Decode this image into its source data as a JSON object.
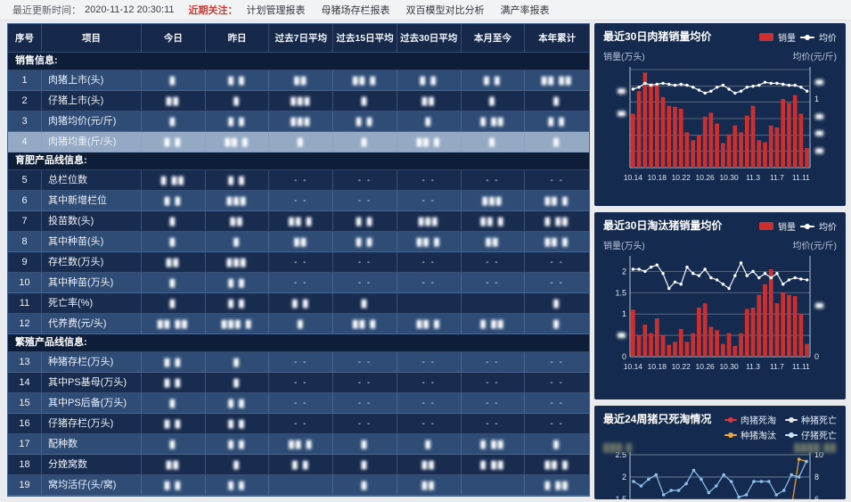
{
  "topbar": {
    "update_label": "最近更新时间：",
    "update_time": "2020-11-12 20:30:11",
    "focus_label": "近期关注：",
    "links": [
      "计划管理报表",
      "母猪场存栏报表",
      "双百模型对比分析",
      "满产率报表"
    ]
  },
  "table": {
    "headers": [
      "序号",
      "项目",
      "今日",
      "昨日",
      "过去7日平均",
      "过去15日平均",
      "过去30日平均",
      "本月至今",
      "本年累计"
    ],
    "sections": [
      {
        "title": "销售信息:",
        "rows": [
          {
            "num": "1",
            "label": "肉猪上市(头)",
            "shade": "a",
            "cells": [
              "█",
              "█ █",
              "██",
              "██ █",
              "█ █",
              "█ █",
              "██ ██"
            ]
          },
          {
            "num": "2",
            "label": "仔猪上市(头)",
            "shade": "b",
            "cells": [
              "██",
              "█",
              "███",
              "█",
              "██",
              "█",
              "█"
            ]
          },
          {
            "num": "3",
            "label": "肉猪均价(元/斤)",
            "shade": "a",
            "cells": [
              "█",
              "█ █",
              "███",
              "█ █",
              "█",
              "█ ██",
              "█ █"
            ]
          },
          {
            "num": "4",
            "label": "肉猪均重(斤/头)",
            "shade": "hl",
            "cells": [
              "█ █",
              "██ █",
              "█",
              "█",
              "██ █",
              "█",
              "█"
            ]
          }
        ]
      },
      {
        "title": "育肥产品线信息:",
        "rows": [
          {
            "num": "5",
            "label": "总栏位数",
            "shade": "b",
            "cells": [
              "█ ██",
              "█ █",
              "- -",
              "- -",
              "- -",
              "- -",
              "- -"
            ]
          },
          {
            "num": "6",
            "label": "其中新增栏位",
            "shade": "a",
            "cells": [
              "█ █",
              "███",
              "- -",
              "- -",
              "- -",
              "███",
              "██ █"
            ]
          },
          {
            "num": "7",
            "label": "投苗数(头)",
            "shade": "b",
            "cells": [
              "█",
              "██",
              "██ █",
              "█ █",
              "███",
              "██ █",
              "█ ██"
            ]
          },
          {
            "num": "8",
            "label": "其中种苗(头)",
            "shade": "a",
            "cells": [
              "█",
              "█",
              "██",
              "█ █",
              "██ █",
              "██",
              "██ █"
            ]
          },
          {
            "num": "9",
            "label": "存栏数(万头)",
            "shade": "b",
            "cells": [
              "██",
              "███",
              "- -",
              "- -",
              "- -",
              "- -",
              "- -"
            ]
          },
          {
            "num": "10",
            "label": "其中种苗(万头)",
            "shade": "a",
            "cells": [
              "█",
              "█ █",
              "- -",
              "- -",
              "- -",
              "- -",
              "- -"
            ]
          },
          {
            "num": "11",
            "label": "死亡率(%)",
            "shade": "b",
            "cells": [
              "█",
              "█ █",
              "█ █",
              "█",
              "",
              "",
              "█"
            ]
          },
          {
            "num": "12",
            "label": "代养费(元/头)",
            "shade": "a",
            "cells": [
              "██ ██",
              "███ █",
              "█",
              "██ █",
              "██ █",
              "█ ██",
              "█"
            ]
          }
        ]
      },
      {
        "title": "繁殖产品线信息:",
        "rows": [
          {
            "num": "13",
            "label": "种猪存栏(万头)",
            "shade": "a",
            "cells": [
              "█ █",
              "█",
              "- -",
              "- -",
              "- -",
              "- -",
              "- -"
            ]
          },
          {
            "num": "14",
            "label": "其中PS基母(万头)",
            "shade": "b",
            "cells": [
              "█ █",
              "█",
              "- -",
              "- -",
              "- -",
              "- -",
              "- -"
            ]
          },
          {
            "num": "15",
            "label": "其中PS后备(万头)",
            "shade": "a",
            "cells": [
              "█",
              "█ █",
              "- -",
              "- -",
              "- -",
              "- -",
              "- -"
            ]
          },
          {
            "num": "16",
            "label": "仔猪存栏(万头)",
            "shade": "b",
            "cells": [
              "█ █",
              "█ █",
              "- -",
              "- -",
              "- -",
              "- -",
              "- -"
            ]
          },
          {
            "num": "17",
            "label": "配种数",
            "shade": "a",
            "cells": [
              "█",
              "█ █",
              "██ █",
              "█",
              "█",
              "█ ██",
              "█"
            ]
          },
          {
            "num": "18",
            "label": "分娩窝数",
            "shade": "b",
            "cells": [
              "██",
              "█",
              "█ █",
              "█",
              "██",
              "█ ██",
              "██ █"
            ]
          },
          {
            "num": "19",
            "label": "窝均活仔(头/窝)",
            "shade": "a",
            "cells": [
              "█ █",
              "█ █",
              "",
              "█",
              "██",
              "",
              "█ ██"
            ]
          }
        ]
      }
    ]
  },
  "chart_data": {
    "c1": {
      "type": "bar",
      "title": "最近30日肉猪销量均价",
      "legend": [
        "销量",
        "均价"
      ],
      "y_left_label": "销量(万头)",
      "y_right_label": "均价(元/斤)",
      "bar_color": "#cb2f2f",
      "line_color": "#f2f5fa",
      "x_tick_labels": [
        "10.14",
        "10.18",
        "10.22",
        "10.26",
        "10.30",
        "11.3",
        "11.7",
        "11.11"
      ],
      "x_tick_index": [
        0,
        4,
        8,
        12,
        16,
        20,
        24,
        28
      ],
      "bars_rel": [
        0.55,
        0.78,
        0.97,
        0.86,
        0.84,
        0.72,
        0.63,
        0.62,
        0.6,
        0.36,
        0.28,
        0.33,
        0.52,
        0.56,
        0.45,
        0.25,
        0.34,
        0.43,
        0.36,
        0.53,
        0.63,
        0.28,
        0.26,
        0.43,
        0.41,
        0.7,
        0.66,
        0.74,
        0.55,
        0.2
      ],
      "line_rel": [
        0.8,
        0.82,
        0.86,
        0.84,
        0.85,
        0.86,
        0.85,
        0.84,
        0.85,
        0.84,
        0.82,
        0.79,
        0.76,
        0.78,
        0.82,
        0.84,
        0.8,
        0.76,
        0.78,
        0.82,
        0.83,
        0.84,
        0.87,
        0.86,
        0.86,
        0.85,
        0.84,
        0.84,
        0.82,
        0.78
      ],
      "right_axis_visible_tick": "1"
    },
    "c2": {
      "type": "bar",
      "title": "最近30日淘汰猪销量均价",
      "legend": [
        "销量",
        "均价"
      ],
      "y_left_label": "销量(万头)",
      "y_right_label": "均价(元/斤)",
      "bar_color": "#cb2f2f",
      "line_color": "#f2f5fa",
      "ylim": [
        0,
        2.3
      ],
      "y_ticks_left": [
        "0",
        "0.5",
        "1",
        "1.5",
        "2"
      ],
      "y_tick_right_visible": "0",
      "x_tick_labels": [
        "10.14",
        "10.18",
        "10.22",
        "10.26",
        "10.30",
        "11.3",
        "11.7",
        "11.11"
      ],
      "x_tick_index": [
        0,
        4,
        8,
        12,
        16,
        20,
        24,
        28
      ],
      "bars": [
        1.1,
        0.5,
        0.75,
        0.55,
        0.9,
        0.5,
        0.28,
        0.35,
        0.65,
        0.35,
        0.55,
        1.15,
        1.25,
        0.7,
        0.62,
        0.3,
        0.55,
        0.25,
        0.55,
        1.12,
        1.15,
        1.45,
        1.7,
        2.05,
        1.25,
        1.5,
        1.45,
        1.42,
        1.0,
        0.3
      ],
      "line": [
        2.05,
        2.05,
        2.0,
        2.1,
        2.15,
        1.95,
        1.6,
        1.75,
        1.7,
        2.1,
        1.95,
        1.9,
        2.05,
        1.85,
        1.8,
        1.7,
        1.6,
        1.9,
        2.2,
        1.9,
        2.0,
        1.85,
        1.95,
        1.85,
        1.95,
        1.7,
        1.8,
        1.85,
        1.82,
        1.8
      ]
    },
    "c3": {
      "type": "line",
      "title": "最近24周猪只死淘情况",
      "legend": [
        {
          "label": "肉猪死淘",
          "color": "#d9363e"
        },
        {
          "label": "种猪死亡",
          "color": "#e8e8e8"
        },
        {
          "label": "种猪淘汰",
          "color": "#eda73d"
        },
        {
          "label": "仔猪死亡",
          "color": "#cfe3fb"
        }
      ],
      "y_left_label_redacted": "███ █",
      "y_right_label_redacted": "████ ██",
      "y_ticks_left": [
        "2.5",
        "2",
        "1.5"
      ],
      "y_ticks_right": [
        "10",
        "8",
        "6"
      ],
      "series": [
        {
          "name": "仔猪死亡",
          "color": "#8fc1ef",
          "values": [
            1.9,
            1.8,
            1.95,
            2.05,
            1.6,
            1.7,
            1.7,
            1.85,
            2.15,
            1.95,
            1.65,
            1.8,
            2.05,
            1.9,
            1.55,
            1.6,
            1.9,
            1.9,
            1.9,
            1.6,
            1.7,
            2.05,
            2.0,
            2.35
          ]
        },
        {
          "name": "种猪淘汰",
          "color": "#eda73d",
          "values": [
            1.15,
            1.15,
            1.15,
            1.15,
            1.15,
            1.15,
            1.15,
            1.15,
            1.15,
            1.15,
            1.15,
            1.15,
            1.15,
            1.15,
            1.15,
            1.15,
            1.15,
            1.15,
            1.34,
            1.15,
            1.15,
            1.3,
            2.4,
            2.35
          ]
        }
      ]
    }
  }
}
